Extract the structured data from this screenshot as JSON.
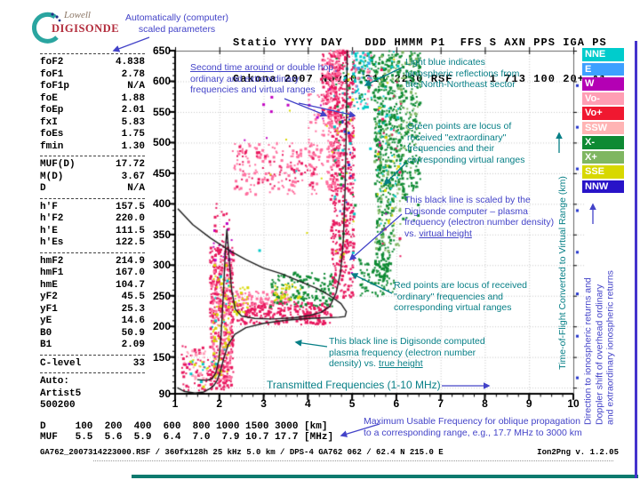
{
  "logo": {
    "line1": "Lowell",
    "line2": "DIGISONDE"
  },
  "header": {
    "row1": "Statio YYYY DAY   DDD HMMM P1  FFS S AXN PPS IGA PS",
    "row2": "Gakona 2007 Nov10 314 2230 RSF     1 713 100 20+ A1"
  },
  "params": {
    "groups": [
      [
        [
          "foF2",
          "4.838"
        ],
        [
          "foF1",
          "2.78"
        ],
        [
          "foF1p",
          "N/A"
        ],
        [
          "foE",
          "1.88"
        ],
        [
          "foEp",
          "2.01"
        ],
        [
          "fxI",
          "5.83"
        ],
        [
          "foEs",
          "1.75"
        ],
        [
          "fmin",
          "1.30"
        ]
      ],
      [
        [
          "MUF(D)",
          "17.72"
        ],
        [
          "M(D)",
          "3.67"
        ],
        [
          "D",
          "N/A"
        ]
      ],
      [
        [
          "h'F",
          "157.5"
        ],
        [
          "h'F2",
          "220.0"
        ],
        [
          "h'E",
          "111.5"
        ],
        [
          "h'Es",
          "122.5"
        ]
      ],
      [
        [
          "hmF2",
          "214.9"
        ],
        [
          "hmF1",
          "167.0"
        ],
        [
          "hmE",
          "104.7"
        ],
        [
          "yF2",
          "45.5"
        ],
        [
          "yF1",
          "25.3"
        ],
        [
          "yE",
          "14.6"
        ],
        [
          "B0",
          "50.9"
        ],
        [
          "B1",
          "2.09"
        ]
      ],
      [
        [
          "C-level",
          "33"
        ]
      ]
    ],
    "footer": [
      "Auto:",
      "Artist5",
      "500200"
    ]
  },
  "muf_table": {
    "row_d": "D     100  200  400  600  800 1000 1500 3000 [km]",
    "row_muf": "MUF   5.5  5.6  5.9  6.4  7.0  7.9 10.7 17.7 [MHz]"
  },
  "status_bar": {
    "left": "GA762_2007314223000.RSF / 360fx128h 25 kHz 5.0 km / DPS-4 GA762 062 / 62.4 N 215.0 E",
    "right": "Ion2Png v. 1.2.05"
  },
  "legend": {
    "items": [
      {
        "label": "NNE",
        "color": "#00cccc"
      },
      {
        "label": "E",
        "color": "#3da0ff"
      },
      {
        "label": "W",
        "color": "#b400b4"
      },
      {
        "label": "Vo-",
        "color": "#ff9eb4"
      },
      {
        "label": "Vo+",
        "color": "#f01830"
      },
      {
        "label": "SSW",
        "color": "#ffb4b4"
      },
      {
        "label": "X-",
        "color": "#0e8a33"
      },
      {
        "label": "X+",
        "color": "#7fb661"
      },
      {
        "label": "SSE",
        "color": "#d8d800"
      },
      {
        "label": "NNW",
        "color": "#2813c8"
      }
    ]
  },
  "annotations": {
    "auto_scaled": "Automatically (computer)\nscaled parameters",
    "second_time": {
      "u": "Second time around",
      "rest": " or double hop ordinary and extraordinary frequencies and virtual ranges"
    },
    "light_blue": "Light blue indicates\nionospheric reflections from\nthe North-Northeast sector",
    "green_points": "Green points are locus of\nreceived \"extraordinary\"\nfrequencies and their\ncorresponding virtual ranges",
    "black_virtual": {
      "pre": "This black line is scaled by the Digisonde computer – plasma frequency (electron number density) vs. ",
      "u": "virtual height"
    },
    "red_points": "Red points are locus of received\n\"ordinary\" frequencies and\ncorresponding virtual ranges",
    "black_true": {
      "pre": "This black line is Digisonde computed plasma frequency (electron number density) vs. ",
      "u": "true height"
    },
    "transmitted": "Transmitted Frequencies (1-10 MHz)",
    "muf_note": "Maximum Usable Frequency for oblique propagation\nto a corresponding range, e.g., 17.7 MHz to 3000 km",
    "tof_axis": "Time-of-Flight Converted to Virtual Range (km)",
    "direction_lines": [
      "Direction to ionospheric returns and",
      "Doppler shift of overhead ordinary",
      "and extraordinary ionospheric returns"
    ]
  },
  "chart_data": {
    "type": "scatter",
    "title": "Digisonde ionogram, Gakona 2007 Nov10 314 2230",
    "xlabel": "Transmitted Frequencies (1-10 MHz)",
    "ylabel": "Time-of-Flight Converted to Virtual Range (km)",
    "xlim": [
      1,
      10
    ],
    "ylim": [
      90,
      650
    ],
    "grid": true,
    "x_ticks": [
      1,
      2,
      3,
      4,
      5,
      6,
      7,
      8,
      9,
      10
    ],
    "y_ticks": [
      650,
      600,
      550,
      500,
      450,
      400,
      350,
      300,
      250,
      200,
      150,
      90
    ],
    "scaled_values": {
      "foF2_MHz": 4.838,
      "fxI_MHz": 5.83,
      "hmF2_km": 214.9,
      "h_F_km": 157.5
    },
    "clusters": [
      {
        "c": "#e8175d",
        "f": [
          1.15,
          1.8
        ],
        "km": [
          95,
          170
        ],
        "n": 55
      },
      {
        "c": "#ff9eb8",
        "f": [
          1.2,
          1.75
        ],
        "km": [
          100,
          160
        ],
        "n": 25
      },
      {
        "c": "#00c8c8",
        "f": [
          1.25,
          1.7
        ],
        "km": [
          108,
          155
        ],
        "n": 6
      },
      {
        "c": "#d8d800",
        "f": [
          1.3,
          1.75
        ],
        "km": [
          100,
          150
        ],
        "n": 8
      },
      {
        "c": "#e8175d",
        "f": [
          1.78,
          2.32
        ],
        "km": [
          95,
          330
        ],
        "n": 380
      },
      {
        "c": "#ff6e9e",
        "f": [
          1.82,
          2.28
        ],
        "km": [
          110,
          310
        ],
        "n": 140
      },
      {
        "c": "#d8d800",
        "f": [
          1.85,
          2.25
        ],
        "km": [
          115,
          300
        ],
        "n": 65
      },
      {
        "c": "#c000c0",
        "f": [
          1.8,
          2.3
        ],
        "km": [
          300,
          375
        ],
        "n": 16
      },
      {
        "c": "#e8175d",
        "f": [
          1.85,
          2.25
        ],
        "km": [
          330,
          420
        ],
        "n": 18
      },
      {
        "c": "#00c8c8",
        "f": [
          1.82,
          2.25
        ],
        "km": [
          130,
          290
        ],
        "n": 12
      },
      {
        "c": "#e8175d",
        "f": [
          2.25,
          4.55
        ],
        "km": [
          203,
          240
        ],
        "n": 300
      },
      {
        "c": "#ff6e9e",
        "f": [
          2.35,
          3.6
        ],
        "km": [
          236,
          258
        ],
        "n": 65
      },
      {
        "c": "#d8d800",
        "f": [
          2.3,
          2.65
        ],
        "km": [
          212,
          265
        ],
        "n": 28
      },
      {
        "c": "#0e8a33",
        "f": [
          3.15,
          4.6
        ],
        "km": [
          232,
          288
        ],
        "n": 150
      },
      {
        "c": "#d8d800",
        "f": [
          3.25,
          3.85
        ],
        "km": [
          242,
          270
        ],
        "n": 38
      },
      {
        "c": "#0e8a33",
        "f": [
          5.15,
          5.75
        ],
        "km": [
          248,
          310
        ],
        "n": 70
      },
      {
        "c": "#e8175d",
        "f": [
          4.52,
          5.05
        ],
        "km": [
          246,
          650
        ],
        "n": 520
      },
      {
        "c": "#ff6e9e",
        "f": [
          4.42,
          4.72
        ],
        "km": [
          420,
          650
        ],
        "n": 110
      },
      {
        "c": "#00c8c8",
        "f": [
          4.55,
          5.08
        ],
        "km": [
          320,
          645
        ],
        "n": 24
      },
      {
        "c": "#d8d800",
        "f": [
          4.55,
          5.05
        ],
        "km": [
          300,
          640
        ],
        "n": 20
      },
      {
        "c": "#2233cc",
        "f": [
          4.6,
          5.0
        ],
        "km": [
          350,
          640
        ],
        "n": 12
      },
      {
        "c": "#0e8a33",
        "f": [
          4.6,
          5.1
        ],
        "km": [
          300,
          645
        ],
        "n": 24
      },
      {
        "c": "#0e8a33",
        "f": [
          5.5,
          6.15
        ],
        "km": [
          430,
          650
        ],
        "n": 380
      },
      {
        "c": "#0e8a33",
        "f": [
          5.55,
          5.95
        ],
        "km": [
          255,
          430
        ],
        "n": 160
      },
      {
        "c": "#7fb661",
        "f": [
          5.5,
          6.15
        ],
        "km": [
          320,
          650
        ],
        "n": 110
      },
      {
        "c": "#00c8c8",
        "f": [
          5.5,
          6.1
        ],
        "km": [
          400,
          650
        ],
        "n": 40
      },
      {
        "c": "#d8d800",
        "f": [
          5.55,
          6.05
        ],
        "km": [
          350,
          640
        ],
        "n": 18
      },
      {
        "c": "#e8175d",
        "f": [
          5.55,
          6.1
        ],
        "km": [
          300,
          630
        ],
        "n": 18
      },
      {
        "c": "#0e8a33",
        "f": [
          6.15,
          6.55
        ],
        "km": [
          420,
          650
        ],
        "n": 160
      },
      {
        "c": "#7fb661",
        "f": [
          6.15,
          6.5
        ],
        "km": [
          450,
          650
        ],
        "n": 45
      },
      {
        "c": "#0e8a33",
        "f": [
          6.1,
          6.5
        ],
        "km": [
          370,
          430
        ],
        "n": 22
      },
      {
        "c": "#00c8c8",
        "f": [
          5.0,
          5.45
        ],
        "km": [
          555,
          648
        ],
        "n": 60
      },
      {
        "c": "#3b9ced",
        "f": [
          5.05,
          5.4
        ],
        "km": [
          570,
          640
        ],
        "n": 16
      },
      {
        "c": "#0e8a33",
        "f": [
          5.15,
          5.5
        ],
        "km": [
          560,
          650
        ],
        "n": 35
      },
      {
        "c": "#ff6e9e",
        "f": [
          5.05,
          5.45
        ],
        "km": [
          560,
          645
        ],
        "n": 20
      },
      {
        "c": "#ff6e9e",
        "f": [
          2.3,
          4.25
        ],
        "km": [
          415,
          500
        ],
        "n": 150
      },
      {
        "c": "#e8175d",
        "f": [
          2.4,
          4.2
        ],
        "km": [
          425,
          495
        ],
        "n": 65
      },
      {
        "c": "#ff6e9e",
        "f": [
          4.0,
          4.55
        ],
        "km": [
          460,
          580
        ],
        "n": 65
      },
      {
        "c": "#e8175d",
        "f": [
          4.3,
          4.75
        ],
        "km": [
          540,
          650
        ],
        "n": 110
      },
      {
        "c": "#ff6e9e",
        "f": [
          4.35,
          4.75
        ],
        "km": [
          560,
          650
        ],
        "n": 55
      },
      {
        "c": "#c000c0",
        "f": [
          2.2,
          4.5
        ],
        "km": [
          500,
          600
        ],
        "n": 9
      },
      {
        "c": "#c000c0",
        "f": [
          1.3,
          6.3
        ],
        "km": [
          100,
          640
        ],
        "n": 8
      },
      {
        "c": "#00c8c8",
        "f": [
          1.5,
          6.3
        ],
        "km": [
          100,
          600
        ],
        "n": 6
      },
      {
        "c": "#d8d800",
        "f": [
          2.0,
          6.0
        ],
        "km": [
          300,
          600
        ],
        "n": 6
      }
    ],
    "profiles": {
      "true_height": [
        [
          1.05,
          100
        ],
        [
          1.2,
          94
        ],
        [
          1.45,
          91
        ],
        [
          1.65,
          93
        ],
        [
          1.78,
          98
        ],
        [
          1.88,
          104
        ],
        [
          1.95,
          112
        ],
        [
          2.02,
          126
        ],
        [
          2.1,
          148
        ],
        [
          2.2,
          170
        ],
        [
          2.35,
          187
        ],
        [
          2.6,
          198
        ],
        [
          3.0,
          205
        ],
        [
          3.5,
          210
        ],
        [
          4.0,
          213
        ],
        [
          4.4,
          214
        ],
        [
          4.7,
          215
        ],
        [
          4.84,
          216
        ],
        [
          4.87,
          224
        ],
        [
          4.75,
          237
        ],
        [
          4.5,
          250
        ],
        [
          4.2,
          262
        ],
        [
          3.8,
          274
        ],
        [
          3.4,
          286
        ],
        [
          3.0,
          295
        ],
        [
          2.6,
          309
        ],
        [
          2.2,
          325
        ],
        [
          1.8,
          344
        ],
        [
          1.4,
          366
        ],
        [
          1.06,
          392
        ]
      ],
      "virtual_height": [
        [
          1.5,
          113
        ],
        [
          1.72,
          112
        ],
        [
          1.84,
          115
        ],
        [
          1.92,
          124
        ],
        [
          1.99,
          146
        ],
        [
          2.04,
          186
        ],
        [
          2.09,
          252
        ],
        [
          2.14,
          330
        ],
        [
          2.17,
          358
        ],
        [
          2.22,
          312
        ],
        [
          2.28,
          258
        ],
        [
          2.36,
          228
        ],
        [
          2.5,
          217
        ],
        [
          2.8,
          213
        ],
        [
          3.2,
          212
        ],
        [
          3.7,
          214
        ],
        [
          4.05,
          218
        ],
        [
          4.3,
          223
        ],
        [
          4.5,
          233
        ],
        [
          4.64,
          255
        ],
        [
          4.74,
          289
        ],
        [
          4.8,
          338
        ],
        [
          4.84,
          420
        ],
        [
          4.87,
          530
        ],
        [
          4.89,
          650
        ]
      ]
    },
    "side_markers_km": [
      593,
      525,
      457,
      389,
      321,
      253,
      184,
      116
    ]
  }
}
